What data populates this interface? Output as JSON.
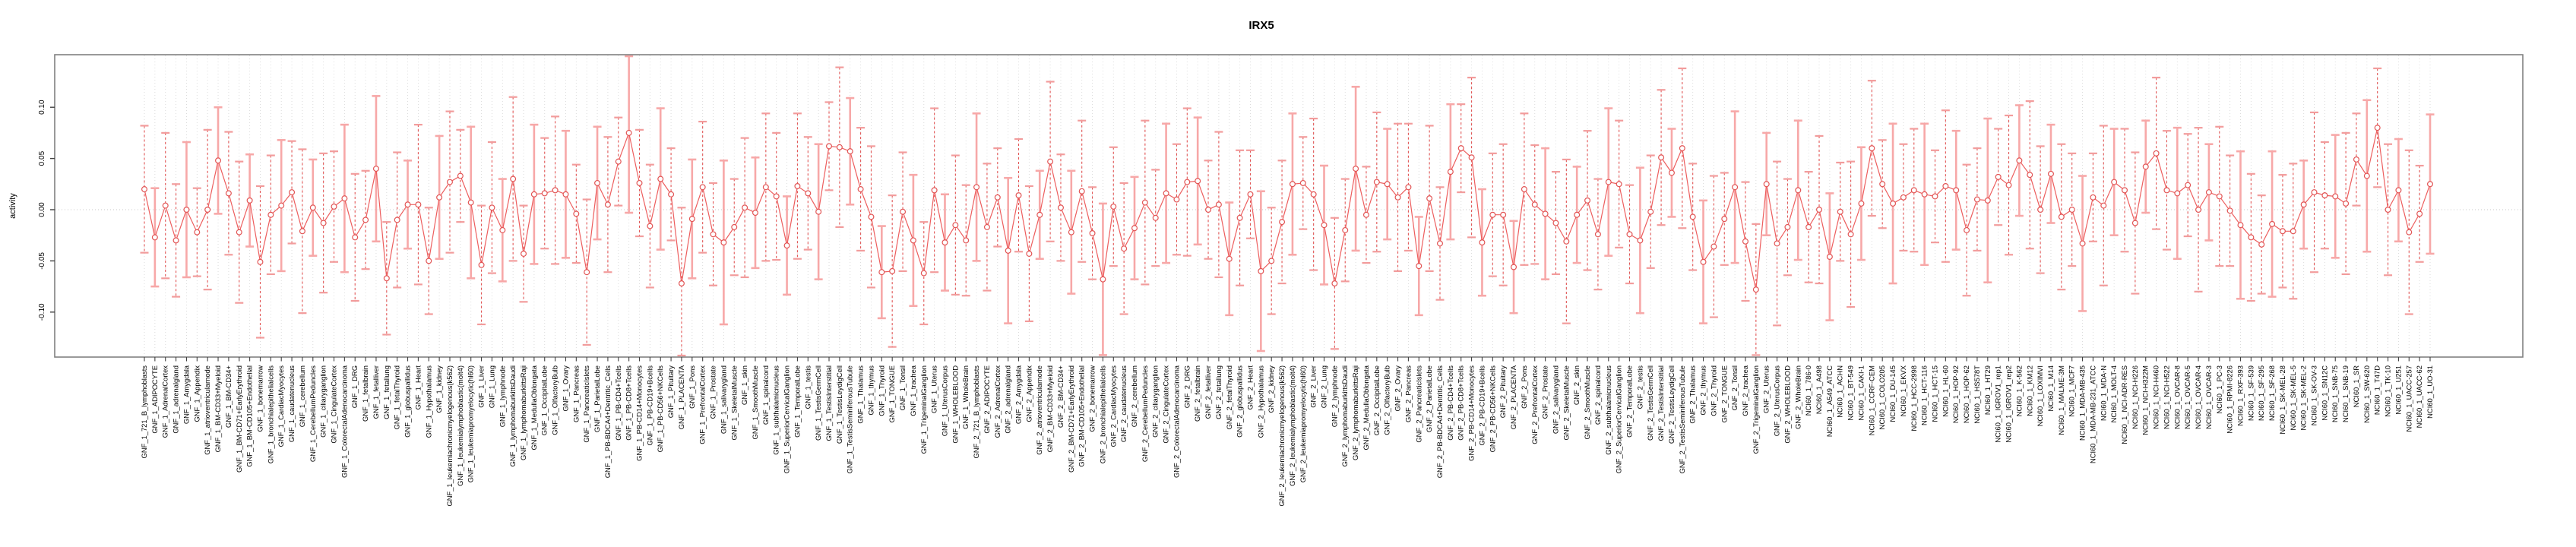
{
  "colors": {
    "series_line": "#ED5E5E",
    "point_stroke": "#E25555",
    "errorbar_dashed": "#E25555",
    "errorbar_pale": "#F7A8A8",
    "errorbar_cap": "#F29C9C",
    "gridline": "#D9D9D9",
    "zero_line": "#C8C8C8",
    "box_border": "#808080",
    "tick": "#404040",
    "text": "#000000"
  },
  "chart_data": {
    "type": "line",
    "title": "IRX5",
    "xlabel": "",
    "ylabel": "activity",
    "ylim": [
      -0.144,
      0.151
    ],
    "grid": "vertical dotted gridline per category; dotted horizontal line at 0",
    "legend_position": "none",
    "marker": "open-circle with error bars",
    "yticks": [
      {
        "value": 0.1,
        "label": "0.10"
      },
      {
        "value": 0.05,
        "label": "0.05"
      },
      {
        "value": 0.0,
        "label": "0.00"
      },
      {
        "value": -0.05,
        "label": "-0.05"
      },
      {
        "value": -0.1,
        "label": "-0.10"
      }
    ],
    "categories": [
      "GNF_1_721_B_lymphoblasts",
      "GNF_1_ADIPOCYTE",
      "GNF_1_AdrenalCortex",
      "GNF_1_adrenalgland",
      "GNF_1_Amygdala",
      "GNF_1_Appendix",
      "GNF_1_atrioventricularnode",
      "GNF_1_BM-CD33+Myeloid",
      "GNF_1_BM-CD34+",
      "GNF_1_BM-CD71+EarlyErythroid",
      "GNF_1_BM-CD105+Endothelial",
      "GNF_1_bonemarrow",
      "GNF_1_bronchialepithelialcells",
      "GNF_1_CardiacMyocytes",
      "GNF_1_caudatenucleus",
      "GNF_1_cerebellum",
      "GNF_1_CerebellumPeduncles",
      "GNF_1_ciliaryganglion",
      "GNF_1_CingulateCortex",
      "GNF_1_ColorectalAdenocarcinoma",
      "GNF_1_DRG",
      "GNF_1_fetalbrain",
      "GNF_1_fetalliver",
      "GNF_1_fetallung",
      "GNF_1_fetalThyroid",
      "GNF_1_globuspallidus",
      "GNF_1_Heart",
      "GNF_1_Hypothalamus",
      "GNF_1_kidney",
      "GNF_1_leukemiachronicmyelogenous(k562)",
      "GNF_1_leukemialymphoblastic(molt4)",
      "GNF_1_leukemiapromyelocytic(hl60)",
      "GNF_1_Liver",
      "GNF_1_Lung",
      "GNF_1_lymphnode",
      "GNF_1_lymphomaburkittsDaudi",
      "GNF_1_lymphomaburkittsRaji",
      "GNF_1_MedullaOblongata",
      "GNF_1_OccipitalLobe",
      "GNF_1_OlfactoryBulb",
      "GNF_1_Ovary",
      "GNF_1_Pancreas",
      "GNF_1_PancreaticIslets",
      "GNF_1_ParietalLobe",
      "GNF_1_PB-BDCA4+Dentritic_Cells",
      "GNF_1_PB-CD4+Tcells",
      "GNF_1_PB-CD8+Tcells",
      "GNF_1_PB-CD14+Monocytes",
      "GNF_1_PB-CD19+Bcells",
      "GNF_1_PB-CD56+NKCells",
      "GNF_1_Pituitary",
      "GNF_1_PLACENTA",
      "GNF_1_Pons",
      "GNF_1_PrefrontalCortex",
      "GNF_1_Prostate",
      "GNF_1_salivarygland",
      "GNF_1_SkeletalMuscle",
      "GNF_1_skin",
      "GNF_1_SmoothMuscle",
      "GNF_1_spinalcord",
      "GNF_1_subthalamicnucleus",
      "GNF_1_SuperiorCervicalGanglion",
      "GNF_1_TemporalLobe",
      "GNF_1_testis",
      "GNF_1_TestisGermCell",
      "GNF_1_TestisInterstitial",
      "GNF_1_TestisLeydigCell",
      "GNF_1_TestisSeminiferousTubule",
      "GNF_1_Thalamus",
      "GNF_1_thymus",
      "GNF_1_Thyroid",
      "GNF_1_TONGUE",
      "GNF_1_Tonsil",
      "GNF_1_trachea",
      "GNF_1_TrigeminalGanglion",
      "GNF_1_Uterus",
      "GNF_1_UterusCorpus",
      "GNF_1_WHOLEBLOOD",
      "GNF_1_WholeBrain",
      "GNF_2_721_B_lymphoblasts",
      "GNF_2_ADIPOCYTE",
      "GNF_2_AdrenalCortex",
      "GNF_2_adrenalgland",
      "GNF_2_Amygdala",
      "GNF_2_Appendix",
      "GNF_2_atrioventricularnode",
      "GNF_2_BM-CD33+Myeloid",
      "GNF_2_BM-CD34+",
      "GNF_2_BM-CD71+EarlyErythroid",
      "GNF_2_BM-CD105+Endothelial",
      "GNF_2_bonemarrow",
      "GNF_2_bronchialepithelialcells",
      "GNF_2_CardiacMyocytes",
      "GNF_2_caudatenucleus",
      "GNF_2_cerebellum",
      "GNF_2_CerebellumPeduncles",
      "GNF_2_ciliaryganglion",
      "GNF_2_CingulateCortex",
      "GNF_2_ColorectalAdenocarcinoma",
      "GNF_2_DRG",
      "GNF_2_fetalbrain",
      "GNF_2_fetalliver",
      "GNF_2_fetallung",
      "GNF_2_fetalThyroid",
      "GNF_2_globuspallidus",
      "GNF_2_Heart",
      "GNF_2_Hypothalamus",
      "GNF_2_kidney",
      "GNF_2_leukemiachronicmyelogenous(k562)",
      "GNF_2_leukemialymphoblastic(molt4)",
      "GNF_2_leukemiapromyelocytic(hl60)",
      "GNF_2_Liver",
      "GNF_2_Lung",
      "GNF_2_lymphnode",
      "GNF_2_lymphomaburkittsDaudi",
      "GNF_2_lymphomaburkittsRaji",
      "GNF_2_MedullaOblongata",
      "GNF_2_OccipitalLobe",
      "GNF_2_OlfactoryBulb",
      "GNF_2_Ovary",
      "GNF_2_Pancreas",
      "GNF_2_PancreaticIslets",
      "GNF_2_ParietalLobe",
      "GNF_2_PB-BDCA4+Dentritic_Cells",
      "GNF_2_PB-CD4+Tcells",
      "GNF_2_PB-CD8+Tcells",
      "GNF_2_PB-CD14+Monocytes",
      "GNF_2_PB-CD19+Bcells",
      "GNF_2_PB-CD56+NKCells",
      "GNF_2_Pituitary",
      "GNF_2_PLACENTA",
      "GNF_2_Pons",
      "GNF_2_PrefrontalCortex",
      "GNF_2_Prostate",
      "GNF_2_salivarygland",
      "GNF_2_SkeletalMuscle",
      "GNF_2_skin",
      "GNF_2_SmoothMuscle",
      "GNF_2_spinalcord",
      "GNF_2_subthalamicnucleus",
      "GNF_2_SuperiorCervicalGanglion",
      "GNF_2_TemporalLobe",
      "GNF_2_testis",
      "GNF_2_TestisGermCell",
      "GNF_2_TestisInterstitial",
      "GNF_2_TestisLeydigCell",
      "GNF_2_TestisSeminiferousTubule",
      "GNF_2_Thalamus",
      "GNF_2_thymus",
      "GNF_2_Thyroid",
      "GNF_2_TONGUE",
      "GNF_2_Tonsil",
      "GNF_2_trachea",
      "GNF_2_TrigeminalGanglion",
      "GNF_2_Uterus",
      "GNF_2_UterusCorpus",
      "GNF_2_WHOLEBLOOD",
      "GNF_2_WholeBrain",
      "NCI60_1_786-0",
      "NCI60_1_A498",
      "NCI60_1_A549_ATCC",
      "NCI60_1_ACHN",
      "NCI60_1_BT-549",
      "NCI60_1_CAKI-1",
      "NCI60_1_CCRF-CEM",
      "NCI60_1_COLO205",
      "NCI60_1_DU-145",
      "NCI60_1_EKVX",
      "NCI60_1_HCC-2998",
      "NCI60_1_HCT-116",
      "NCI60_1_HCT-15",
      "NCI60_1_HL-60",
      "NCI60_1_HOP-92",
      "NCI60_1_HOP-62",
      "NCI60_1_HS578T",
      "NCI60_1_HT29",
      "NCI60_1_IGROV1_rep1",
      "NCI60_1_IGROV1_rep2",
      "NCI60_1_K-562",
      "NCI60_1_KM12",
      "NCI60_1_LOXIMVI",
      "NCI60_1_M14",
      "NCI60_1_MALME-3M",
      "NCI60_1_MCF7",
      "NCI60_1_MDA-MB-435",
      "NCI60_1_MDA-MB-231_ATCC",
      "NCI60_1_MDA-N",
      "NCI60_1_MOLT-4",
      "NCI60_1_NCI-ADR-RES",
      "NCI60_1_NCI-H226",
      "NCI60_1_NCI-H322M",
      "NCI60_1_NCI-H460",
      "NCI60_1_NCI-H522",
      "NCI60_1_OVCAR-8",
      "NCI60_1_OVCAR-5",
      "NCI60_1_OVCAR-4",
      "NCI60_1_OVCAR-3",
      "NCI60_1_PC-3",
      "NCI60_1_RPMI-8226",
      "NCI60_1_RXF-393",
      "NCI60_1_SF-539",
      "NCI60_1_SF-295",
      "NCI60_1_SF-268",
      "NCI60_1_SK-MEL-28",
      "NCI60_1_SK-MEL-5",
      "NCI60_1_SK-MEL-2",
      "NCI60_1_SK-OV-3",
      "NCI60_1_SN12C",
      "NCI60_1_SNB-75",
      "NCI60_1_SNB-19",
      "NCI60_1_SR",
      "NCI60_1_SW-620",
      "NCI60_1_T47D",
      "NCI60_1_TK-10",
      "NCI60_1_U251",
      "NCI60_1_UACC-257",
      "NCI60_1_UACC-62",
      "NCI60_1_UO-31"
    ],
    "series": [
      {
        "name": "activity",
        "values": [
          0.02,
          -0.027,
          0.004,
          -0.03,
          0.0,
          -0.022,
          0.0,
          0.048,
          0.016,
          -0.022,
          0.009,
          -0.051,
          -0.005,
          0.004,
          0.017,
          -0.021,
          0.002,
          -0.013,
          0.003,
          0.011,
          -0.027,
          -0.01,
          0.04,
          -0.067,
          -0.01,
          0.005,
          0.005,
          -0.05,
          0.012,
          0.027,
          0.033,
          0.007,
          -0.054,
          0.002,
          -0.02,
          0.03,
          -0.043,
          0.015,
          0.016,
          0.019,
          0.015,
          -0.004,
          -0.061,
          0.026,
          0.005,
          0.047,
          0.075,
          0.026,
          -0.016,
          0.03,
          0.015,
          -0.072,
          -0.009,
          0.022,
          -0.024,
          -0.032,
          -0.017,
          0.002,
          -0.003,
          0.022,
          0.013,
          -0.035,
          0.023,
          0.016,
          -0.002,
          0.062,
          0.061,
          0.057,
          0.02,
          -0.007,
          -0.061,
          -0.06,
          -0.002,
          -0.03,
          -0.062,
          0.019,
          -0.032,
          -0.015,
          -0.03,
          0.022,
          -0.017,
          0.012,
          -0.04,
          0.014,
          -0.043,
          -0.005,
          0.047,
          0.002,
          -0.022,
          0.018,
          -0.023,
          -0.068,
          0.003,
          -0.038,
          -0.018,
          0.007,
          -0.008,
          0.016,
          0.01,
          0.027,
          0.028,
          0.0,
          0.005,
          -0.048,
          -0.008,
          0.015,
          -0.06,
          -0.05,
          -0.012,
          0.025,
          0.026,
          0.015,
          -0.015,
          -0.072,
          -0.02,
          0.04,
          -0.005,
          0.027,
          0.025,
          0.012,
          0.022,
          -0.055,
          0.011,
          -0.033,
          0.037,
          0.06,
          0.051,
          -0.032,
          -0.005,
          -0.005,
          -0.056,
          0.02,
          0.005,
          -0.004,
          -0.013,
          -0.031,
          -0.005,
          0.009,
          -0.024,
          0.027,
          0.025,
          -0.024,
          -0.03,
          -0.002,
          0.051,
          0.036,
          0.06,
          -0.007,
          -0.051,
          -0.036,
          -0.009,
          0.022,
          -0.031,
          -0.078,
          0.025,
          -0.033,
          -0.017,
          0.019,
          -0.017,
          0.0,
          -0.046,
          -0.002,
          -0.024,
          0.006,
          0.06,
          0.025,
          0.006,
          0.012,
          0.019,
          0.015,
          0.013,
          0.023,
          0.019,
          -0.02,
          0.01,
          0.009,
          0.032,
          0.024,
          0.048,
          0.034,
          0.0,
          0.035,
          -0.007,
          0.0,
          -0.033,
          0.012,
          0.004,
          0.027,
          0.019,
          -0.013,
          0.042,
          0.055,
          0.019,
          0.016,
          0.024,
          0.0,
          0.017,
          0.013,
          -0.001,
          -0.015,
          -0.027,
          -0.034,
          -0.014,
          -0.021,
          -0.021,
          0.005,
          0.017,
          0.014,
          0.013,
          0.006,
          0.049,
          0.033,
          0.08,
          0.0,
          0.019,
          -0.022,
          -0.004,
          0.025
        ],
        "error_halfwidths": [
          0.062,
          0.048,
          0.071,
          0.055,
          0.066,
          0.043,
          0.078,
          0.052,
          0.06,
          0.069,
          0.045,
          0.074,
          0.058,
          0.064,
          0.05,
          0.08,
          0.047,
          0.068,
          0.054,
          0.072,
          0.062,
          0.048,
          0.071,
          0.055,
          0.066,
          0.043,
          0.078,
          0.052,
          0.06,
          0.069,
          0.045,
          0.074,
          0.058,
          0.064,
          0.05,
          0.08,
          0.047,
          0.068,
          0.054,
          0.072,
          0.062,
          0.048,
          0.071,
          0.055,
          0.066,
          0.043,
          0.078,
          0.052,
          0.06,
          0.069,
          0.045,
          0.074,
          0.058,
          0.064,
          0.05,
          0.08,
          0.047,
          0.068,
          0.054,
          0.072,
          0.062,
          0.048,
          0.071,
          0.055,
          0.066,
          0.043,
          0.078,
          0.052,
          0.06,
          0.069,
          0.045,
          0.074,
          0.058,
          0.064,
          0.05,
          0.08,
          0.047,
          0.068,
          0.054,
          0.072,
          0.062,
          0.048,
          0.071,
          0.055,
          0.066,
          0.043,
          0.078,
          0.052,
          0.06,
          0.069,
          0.045,
          0.074,
          0.058,
          0.064,
          0.05,
          0.08,
          0.047,
          0.068,
          0.054,
          0.072,
          0.062,
          0.048,
          0.071,
          0.055,
          0.066,
          0.043,
          0.078,
          0.052,
          0.06,
          0.069,
          0.045,
          0.074,
          0.058,
          0.064,
          0.05,
          0.08,
          0.047,
          0.068,
          0.054,
          0.072,
          0.062,
          0.048,
          0.071,
          0.055,
          0.066,
          0.043,
          0.078,
          0.052,
          0.06,
          0.069,
          0.045,
          0.074,
          0.058,
          0.064,
          0.05,
          0.08,
          0.047,
          0.068,
          0.054,
          0.072,
          0.062,
          0.048,
          0.071,
          0.055,
          0.066,
          0.043,
          0.078,
          0.052,
          0.06,
          0.069,
          0.045,
          0.074,
          0.058,
          0.064,
          0.05,
          0.08,
          0.047,
          0.068,
          0.054,
          0.072,
          0.062,
          0.048,
          0.071,
          0.055,
          0.066,
          0.043,
          0.078,
          0.052,
          0.06,
          0.069,
          0.045,
          0.074,
          0.058,
          0.064,
          0.05,
          0.08,
          0.047,
          0.068,
          0.054,
          0.072,
          0.062,
          0.048,
          0.071,
          0.055,
          0.066,
          0.043,
          0.078,
          0.052,
          0.06,
          0.069,
          0.045,
          0.074,
          0.058,
          0.064,
          0.05,
          0.08,
          0.047,
          0.068,
          0.054,
          0.072,
          0.062,
          0.048,
          0.071,
          0.055,
          0.066,
          0.043,
          0.078,
          0.052,
          0.06,
          0.069,
          0.045,
          0.074,
          0.058,
          0.064,
          0.05,
          0.08,
          0.047,
          0.068
        ]
      }
    ]
  }
}
